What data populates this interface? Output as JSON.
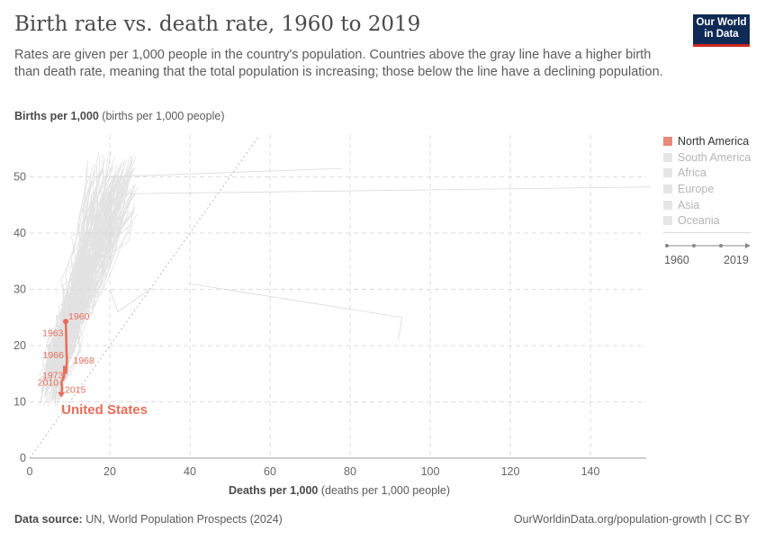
{
  "title": "Birth rate vs. death rate, 1960 to 2019",
  "subtitle": "Rates are given per 1,000 people in the country's population. Countries above the gray line have a higher birth than death rate, meaning that the total population is increasing; those below the line have a declining population.",
  "logo": "Our World in Data",
  "footer": {
    "source_label": "Data source:",
    "source": "UN, World Population Prospects (2024)",
    "link": "OurWorldinData.org/population-growth | CC BY"
  },
  "legend": {
    "items": [
      "North America",
      "South America",
      "Africa",
      "Europe",
      "Asia",
      "Oceania"
    ],
    "active": "North America"
  },
  "timeline": {
    "start": "1960",
    "end": "2019"
  },
  "colors": {
    "highlight": "#e56e5a",
    "background_series": "#d6d6d6"
  },
  "chart_data": {
    "type": "scatter",
    "connected": true,
    "ylabel_bold": "Births per 1,000",
    "ylabel": "(births per 1,000 people)",
    "xlabel_bold": "Deaths per 1,000",
    "xlabel": "(deaths per 1,000 people)",
    "xlim": [
      0,
      155
    ],
    "ylim": [
      0,
      57
    ],
    "xticks": [
      0,
      20,
      40,
      60,
      80,
      100,
      120,
      140
    ],
    "yticks": [
      0,
      10,
      20,
      30,
      40,
      50
    ],
    "grid": true,
    "reference_line": "y = x",
    "highlighted_series": {
      "name": "United States",
      "points": [
        {
          "year": "1960",
          "x": 9.0,
          "y": 24.3
        },
        {
          "year": "1963",
          "x": 9.1,
          "y": 22.0
        },
        {
          "year": "1966",
          "x": 9.2,
          "y": 18.6
        },
        {
          "year": "1968",
          "x": 9.3,
          "y": 17.6
        },
        {
          "year": "1973",
          "x": 9.1,
          "y": 15.0
        },
        {
          "year": "1980",
          "x": 8.7,
          "y": 15.8
        },
        {
          "year": "1990",
          "x": 8.6,
          "y": 16.4
        },
        {
          "year": "2000",
          "x": 8.6,
          "y": 14.4
        },
        {
          "year": "2010",
          "x": 7.9,
          "y": 13.5
        },
        {
          "year": "2015",
          "x": 8.1,
          "y": 12.4
        },
        {
          "year": "2019",
          "x": 7.9,
          "y": 11.4
        }
      ]
    },
    "labeled_years": [
      "1960",
      "1963",
      "1966",
      "1968",
      "1973",
      "2010",
      "2015"
    ]
  }
}
